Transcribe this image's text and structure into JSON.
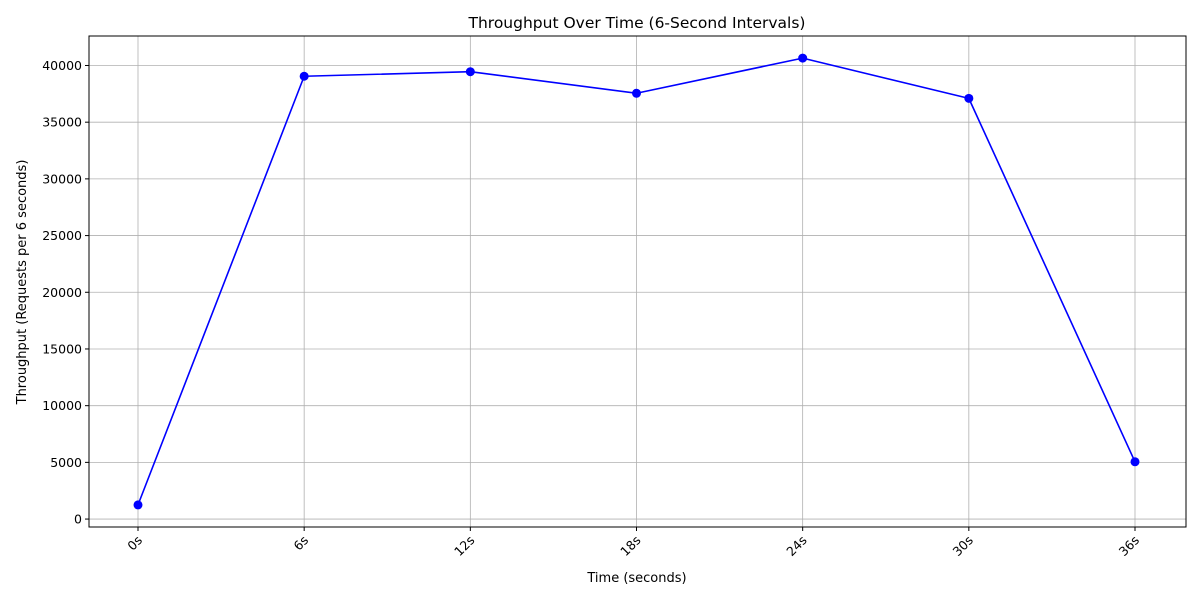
{
  "chart_data": {
    "type": "line",
    "title": "Throughput Over Time (6-Second Intervals)",
    "xlabel": "Time (seconds)",
    "ylabel": "Throughput (Requests per 6 seconds)",
    "categories": [
      "0s",
      "6s",
      "12s",
      "18s",
      "24s",
      "30s",
      "36s"
    ],
    "series": [
      {
        "values": [
          1250,
          39050,
          39450,
          37550,
          40650,
          37100,
          5050
        ],
        "color": "#0000ff",
        "marker": "circle"
      }
    ],
    "yticks": [
      0,
      5000,
      10000,
      15000,
      20000,
      25000,
      30000,
      35000,
      40000
    ],
    "ylim": [
      -700,
      42600
    ],
    "grid": true,
    "xtick_rotation": 45
  }
}
